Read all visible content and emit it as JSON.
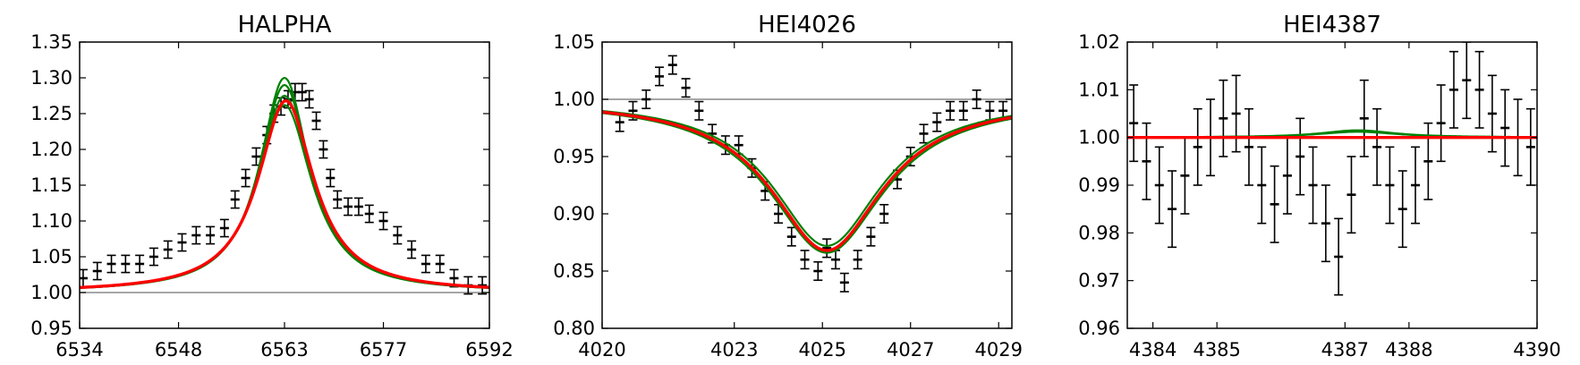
{
  "chart_data": [
    {
      "type": "line",
      "title": "HALPHA",
      "xlim": [
        6534,
        6592
      ],
      "ylim": [
        0.95,
        1.35
      ],
      "xticks": [
        "6534",
        "6548",
        "6563",
        "6577",
        "6592"
      ],
      "yticks": [
        "0.95",
        "1.00",
        "1.05",
        "1.10",
        "1.15",
        "1.20",
        "1.25",
        "1.30",
        "1.35"
      ],
      "continuum": 1.0,
      "grid": false,
      "colors": {
        "data": "#000000",
        "fit": "#ff0000",
        "models": "#008000",
        "continuum": "#888888"
      },
      "observed": {
        "x": [
          6534.5,
          6536.5,
          6538.5,
          6540.5,
          6542.5,
          6544.5,
          6546.5,
          6548.5,
          6550.5,
          6552.5,
          6554.5,
          6556.0,
          6557.5,
          6559.0,
          6560.5,
          6561.5,
          6562.5,
          6563.5,
          6564.5,
          6565.5,
          6566.5,
          6567.5,
          6568.5,
          6569.5,
          6570.5,
          6572.0,
          6573.5,
          6575.0,
          6577.0,
          6579.0,
          6581.0,
          6583.0,
          6585.0,
          6587.0,
          6589.0,
          6591.0
        ],
        "y": [
          1.02,
          1.03,
          1.04,
          1.04,
          1.04,
          1.05,
          1.06,
          1.07,
          1.08,
          1.08,
          1.09,
          1.13,
          1.16,
          1.19,
          1.22,
          1.25,
          1.26,
          1.27,
          1.28,
          1.28,
          1.27,
          1.24,
          1.2,
          1.16,
          1.13,
          1.12,
          1.12,
          1.11,
          1.1,
          1.08,
          1.06,
          1.04,
          1.04,
          1.02,
          1.01,
          1.01
        ],
        "err": 0.012
      },
      "fit": {
        "center": 6563.2,
        "amplitude": 0.268,
        "width": 4.8,
        "baseline": 1.0
      },
      "models": [
        {
          "center": 6563.0,
          "amplitude": 0.3,
          "width": 4.3
        },
        {
          "center": 6563.0,
          "amplitude": 0.29,
          "width": 4.4
        },
        {
          "center": 6563.0,
          "amplitude": 0.275,
          "width": 4.6
        },
        {
          "center": 6563.0,
          "amplitude": 0.262,
          "width": 4.7
        }
      ]
    },
    {
      "type": "line",
      "title": "HEI4026",
      "xlim": [
        4020,
        4029.3
      ],
      "ylim": [
        0.8,
        1.05
      ],
      "xticks": [
        "4020",
        "4023",
        "4025",
        "4027",
        "4029"
      ],
      "yticks": [
        "0.80",
        "0.85",
        "0.90",
        "0.95",
        "1.00",
        "1.05"
      ],
      "continuum": 1.0,
      "grid": false,
      "colors": {
        "data": "#000000",
        "fit": "#ff0000",
        "models": "#008000",
        "continuum": "#888888"
      },
      "observed": {
        "x": [
          4020.4,
          4020.7,
          4021.0,
          4021.3,
          4021.6,
          4021.9,
          4022.2,
          4022.5,
          4022.8,
          4023.1,
          4023.4,
          4023.7,
          4024.0,
          4024.3,
          4024.6,
          4024.9,
          4025.1,
          4025.3,
          4025.5,
          4025.8,
          4026.1,
          4026.4,
          4026.7,
          4027.0,
          4027.3,
          4027.6,
          4027.9,
          4028.2,
          4028.5,
          4028.8,
          4029.1
        ],
        "y": [
          0.98,
          0.99,
          1.0,
          1.02,
          1.03,
          1.01,
          0.99,
          0.97,
          0.96,
          0.96,
          0.94,
          0.92,
          0.9,
          0.88,
          0.86,
          0.85,
          0.87,
          0.86,
          0.84,
          0.86,
          0.88,
          0.9,
          0.93,
          0.95,
          0.97,
          0.98,
          0.99,
          0.99,
          1.0,
          0.99,
          0.99
        ],
        "err": 0.008
      },
      "fit": {
        "center": 4025.1,
        "amplitude": -0.132,
        "width": 1.55,
        "baseline": 1.0
      },
      "models": [
        {
          "center": 4025.1,
          "amplitude": -0.128,
          "width": 1.5
        },
        {
          "center": 4025.1,
          "amplitude": -0.134,
          "width": 1.6
        }
      ]
    },
    {
      "type": "line",
      "title": "HEI4387",
      "xlim": [
        4383.6,
        4390
      ],
      "ylim": [
        0.96,
        1.02
      ],
      "xticks": [
        "4384",
        "4385",
        "4387",
        "4388",
        "4390"
      ],
      "yticks": [
        "0.96",
        "0.97",
        "0.98",
        "0.99",
        "1.00",
        "1.01",
        "1.02"
      ],
      "continuum": 1.0,
      "grid": false,
      "colors": {
        "data": "#000000",
        "fit": "#ff0000",
        "models": "#008000",
        "continuum": "#888888"
      },
      "observed": {
        "x": [
          4383.7,
          4383.9,
          4384.1,
          4384.3,
          4384.5,
          4384.7,
          4384.9,
          4385.1,
          4385.3,
          4385.5,
          4385.7,
          4385.9,
          4386.1,
          4386.3,
          4386.5,
          4386.7,
          4386.9,
          4387.1,
          4387.3,
          4387.5,
          4387.7,
          4387.9,
          4388.1,
          4388.3,
          4388.5,
          4388.7,
          4388.9,
          4389.1,
          4389.3,
          4389.5,
          4389.7,
          4389.9
        ],
        "y": [
          1.003,
          0.995,
          0.99,
          0.985,
          0.992,
          0.998,
          1.0,
          1.004,
          1.005,
          0.998,
          0.99,
          0.986,
          0.992,
          0.996,
          0.99,
          0.982,
          0.975,
          0.988,
          1.004,
          0.998,
          0.99,
          0.985,
          0.99,
          0.995,
          1.003,
          1.01,
          1.012,
          1.01,
          1.005,
          1.002,
          1.0,
          0.998
        ],
        "err": 0.008
      },
      "fit": {
        "center": 4387.0,
        "amplitude": 0.0,
        "width": 0.8,
        "baseline": 1.0
      },
      "models": [
        {
          "center": 4387.2,
          "amplitude": 0.0015,
          "width": 0.7
        },
        {
          "center": 4387.2,
          "amplitude": 0.0012,
          "width": 0.75
        }
      ]
    }
  ]
}
